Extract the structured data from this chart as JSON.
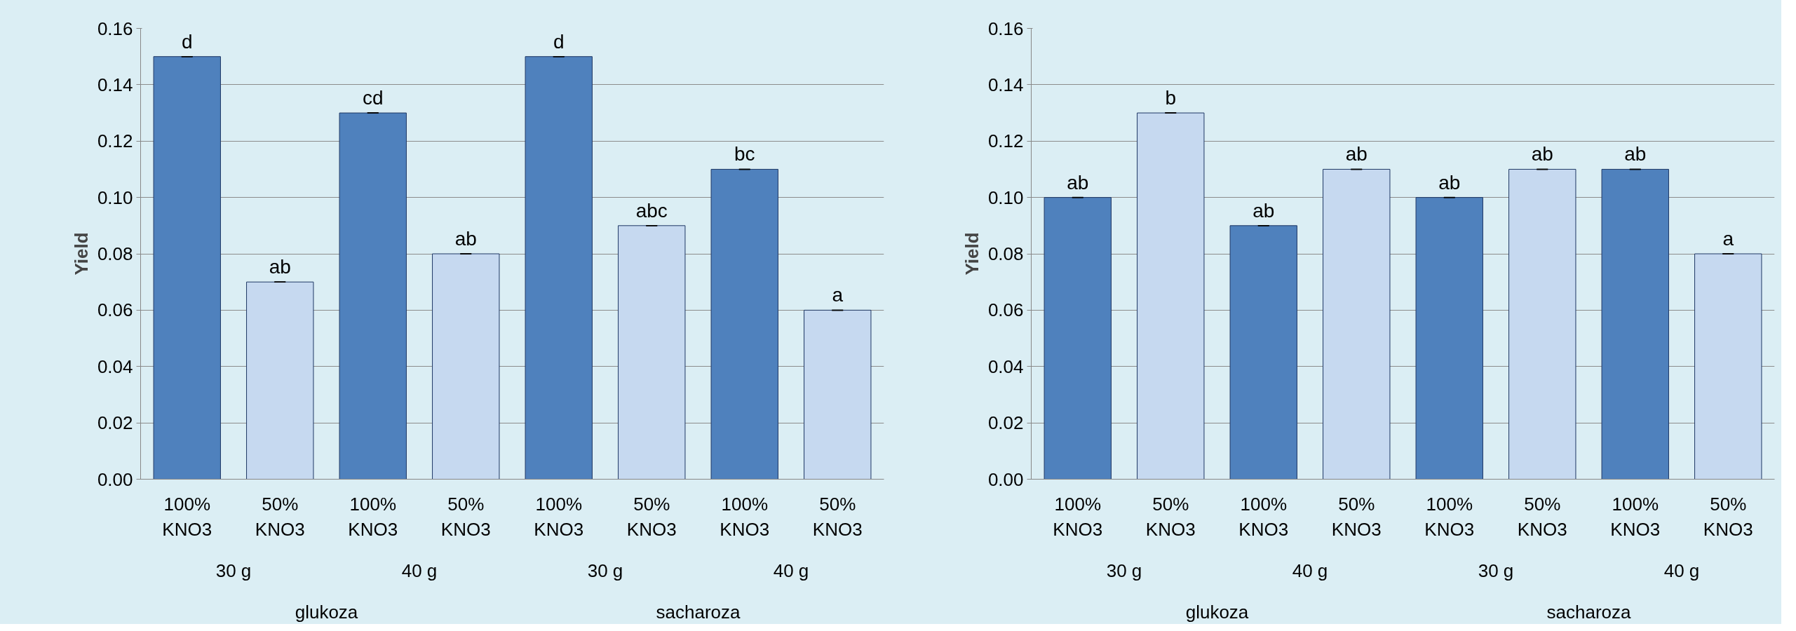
{
  "chart_data": [
    {
      "type": "bar",
      "ylabel": "Yield",
      "categories": [
        "100%\nKNO3",
        "50%\nKNO3",
        "100%\nKNO3",
        "50%\nKNO3",
        "100%\nKNO3",
        "50%\nKNO3",
        "100%\nKNO3",
        "50%\nKNO3"
      ],
      "values": [
        0.15,
        0.07,
        0.13,
        0.08,
        0.15,
        0.09,
        0.11,
        0.06
      ],
      "colors": [
        "#4f81bd",
        "#c6d9f0",
        "#4f81bd",
        "#c6d9f0",
        "#4f81bd",
        "#c6d9f0",
        "#4f81bd",
        "#c6d9f0"
      ],
      "errors": [
        0,
        0,
        0,
        0,
        0,
        0,
        0,
        0
      ],
      "value_labels": [
        "d",
        "ab",
        "cd",
        "ab",
        "d",
        "abc",
        "bc",
        "a"
      ],
      "annotations": [
        "30 g",
        "40 g",
        "30 g",
        "40 g",
        "glukoza",
        "sacharoza"
      ],
      "ylim": [
        0,
        0.16
      ],
      "yticks": [
        {
          "value": 0,
          "label": "0.00"
        },
        {
          "value": 0.02,
          "label": "0.02"
        },
        {
          "value": 0.04,
          "label": "0.04"
        },
        {
          "value": 0.06,
          "label": "0.06"
        },
        {
          "value": 0.08,
          "label": "0.08"
        },
        {
          "value": 0.1,
          "label": "0.10"
        },
        {
          "value": 0.12,
          "label": "0.12"
        },
        {
          "value": 0.14,
          "label": "0.14"
        },
        {
          "value": 0.16,
          "label": "0.16"
        }
      ],
      "grid": "y"
    },
    {
      "type": "bar",
      "ylabel": "Yield",
      "categories": [
        "100%\nKNO3",
        "50%\nKNO3",
        "100%\nKNO3",
        "50%\nKNO3",
        "100%\nKNO3",
        "50%\nKNO3",
        "100%\nKNO3",
        "50%\nKNO3"
      ],
      "values": [
        0.1,
        0.13,
        0.09,
        0.11,
        0.1,
        0.11,
        0.11,
        0.08
      ],
      "colors": [
        "#4f81bd",
        "#c6d9f0",
        "#4f81bd",
        "#c6d9f0",
        "#4f81bd",
        "#c6d9f0",
        "#4f81bd",
        "#c6d9f0"
      ],
      "errors": [
        0,
        0,
        0,
        0,
        0,
        0,
        0,
        0
      ],
      "value_labels": [
        "ab",
        "b",
        "ab",
        "ab",
        "ab",
        "ab",
        "ab",
        "a"
      ],
      "annotations": [
        "30 g",
        "40 g",
        "30 g",
        "40 g",
        "glukoza",
        "sacharoza"
      ],
      "ylim": [
        0,
        0.16
      ],
      "yticks": [
        {
          "value": 0,
          "label": "0.00"
        },
        {
          "value": 0.02,
          "label": "0.02"
        },
        {
          "value": 0.04,
          "label": "0.04"
        },
        {
          "value": 0.06,
          "label": "0.06"
        },
        {
          "value": 0.08,
          "label": "0.08"
        },
        {
          "value": 0.1,
          "label": "0.10"
        },
        {
          "value": 0.12,
          "label": "0.12"
        },
        {
          "value": 0.14,
          "label": "0.14"
        },
        {
          "value": 0.16,
          "label": "0.16"
        }
      ],
      "grid": "y"
    }
  ]
}
